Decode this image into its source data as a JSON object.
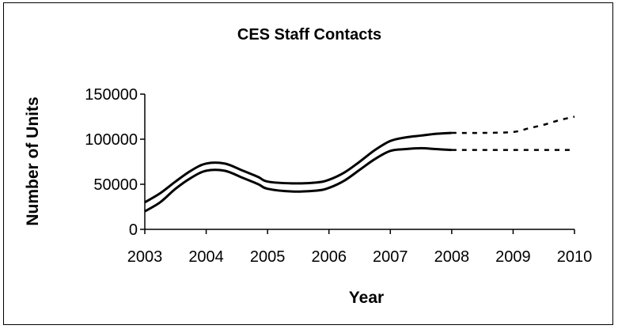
{
  "chart_data": {
    "type": "line",
    "title": "CES Staff Contacts",
    "xlabel": "Year",
    "ylabel": "Number of Units",
    "xlim": [
      2003,
      2010
    ],
    "ylim": [
      0,
      150000
    ],
    "x_ticks": [
      "2003",
      "2004",
      "2005",
      "2006",
      "2007",
      "2008",
      "2009",
      "2010"
    ],
    "y_ticks": [
      "0",
      "50000",
      "100000",
      "150000"
    ],
    "grid": false,
    "legend": "none",
    "line_color": "#000000",
    "series": [
      {
        "style": "solid",
        "points": [
          [
            2003.0,
            30000
          ],
          [
            2003.25,
            40000
          ],
          [
            2003.5,
            53000
          ],
          [
            2003.75,
            65000
          ],
          [
            2004.0,
            73000
          ],
          [
            2004.3,
            73000
          ],
          [
            2004.6,
            65000
          ],
          [
            2004.85,
            58000
          ],
          [
            2005.0,
            53000
          ],
          [
            2005.4,
            51000
          ],
          [
            2005.8,
            52000
          ],
          [
            2006.0,
            55000
          ],
          [
            2006.25,
            63000
          ],
          [
            2006.5,
            75000
          ],
          [
            2006.75,
            88000
          ],
          [
            2007.0,
            98000
          ],
          [
            2007.25,
            102000
          ],
          [
            2007.5,
            104000
          ],
          [
            2007.75,
            106000
          ],
          [
            2008.0,
            107000
          ]
        ]
      },
      {
        "style": "solid",
        "points": [
          [
            2003.0,
            20000
          ],
          [
            2003.25,
            30000
          ],
          [
            2003.5,
            45000
          ],
          [
            2003.75,
            57000
          ],
          [
            2004.0,
            65000
          ],
          [
            2004.3,
            65000
          ],
          [
            2004.6,
            57000
          ],
          [
            2004.85,
            50000
          ],
          [
            2005.0,
            45000
          ],
          [
            2005.4,
            42000
          ],
          [
            2005.8,
            43000
          ],
          [
            2006.0,
            46000
          ],
          [
            2006.25,
            54000
          ],
          [
            2006.5,
            66000
          ],
          [
            2006.75,
            78000
          ],
          [
            2007.0,
            87000
          ],
          [
            2007.25,
            89000
          ],
          [
            2007.5,
            90000
          ],
          [
            2007.75,
            89000
          ],
          [
            2008.0,
            88000
          ]
        ]
      },
      {
        "style": "dashed",
        "points": [
          [
            2008.0,
            107000
          ],
          [
            2008.5,
            107000
          ],
          [
            2009.0,
            108000
          ],
          [
            2009.25,
            112000
          ],
          [
            2009.5,
            116000
          ],
          [
            2009.75,
            121000
          ],
          [
            2010.0,
            125000
          ]
        ]
      },
      {
        "style": "dashed",
        "points": [
          [
            2008.0,
            88000
          ],
          [
            2009.0,
            88000
          ],
          [
            2010.0,
            88000
          ]
        ]
      }
    ]
  }
}
